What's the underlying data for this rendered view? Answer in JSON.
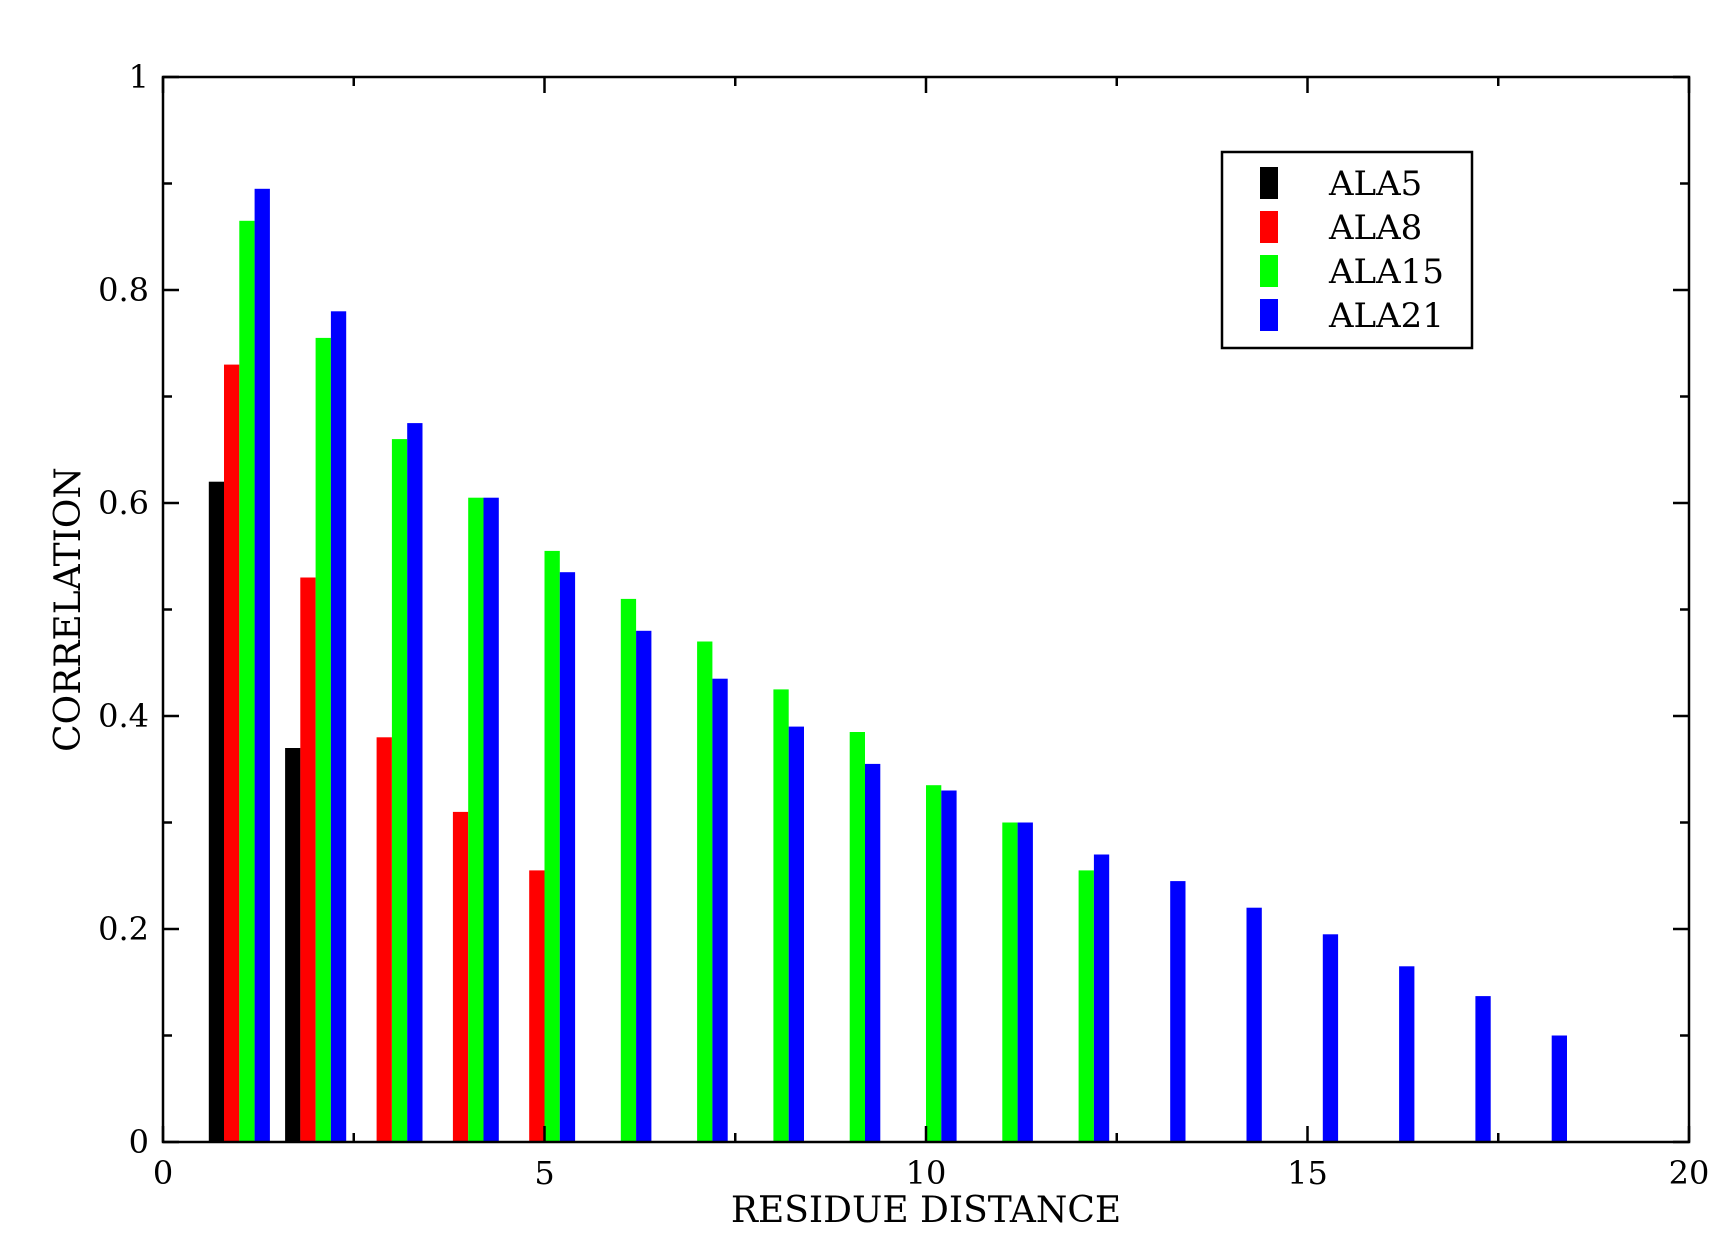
{
  "chart_data": {
    "type": "bar",
    "xlabel": "RESIDUE DISTANCE",
    "ylabel": "CORRELATION",
    "xlim": [
      0,
      20
    ],
    "ylim": [
      0,
      1
    ],
    "xticks": [
      "0",
      "5",
      "10",
      "15",
      "20"
    ],
    "yticks": [
      "0",
      "0.2",
      "0.4",
      "0.6",
      "0.8",
      "1"
    ],
    "legend_position": "top-right",
    "series": [
      {
        "name": "ALA5",
        "color": "#000000",
        "x": [
          1,
          2
        ],
        "values": [
          0.62,
          0.37
        ]
      },
      {
        "name": "ALA8",
        "color": "#ff0000",
        "x": [
          1,
          2,
          3,
          4,
          5
        ],
        "values": [
          0.73,
          0.53,
          0.38,
          0.31,
          0.255
        ]
      },
      {
        "name": "ALA15",
        "color": "#00ff00",
        "x": [
          1,
          2,
          3,
          4,
          5,
          6,
          7,
          8,
          9,
          10,
          11,
          12
        ],
        "values": [
          0.865,
          0.755,
          0.66,
          0.605,
          0.555,
          0.51,
          0.47,
          0.425,
          0.385,
          0.335,
          0.3,
          0.255
        ]
      },
      {
        "name": "ALA21",
        "color": "#0000ff",
        "x": [
          1,
          2,
          3,
          4,
          5,
          6,
          7,
          8,
          9,
          10,
          11,
          12,
          13,
          14,
          15,
          16,
          17,
          18
        ],
        "values": [
          0.895,
          0.78,
          0.675,
          0.605,
          0.535,
          0.48,
          0.435,
          0.39,
          0.355,
          0.33,
          0.3,
          0.27,
          0.245,
          0.22,
          0.195,
          0.165,
          0.137,
          0.1
        ]
      }
    ]
  }
}
